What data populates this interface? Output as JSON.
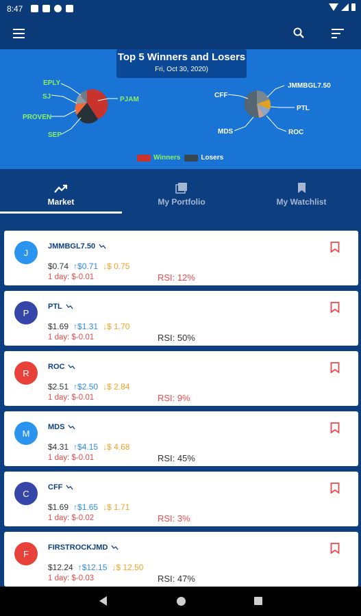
{
  "status_bar": {
    "time": "8:47"
  },
  "chart_data": {
    "type": "pie",
    "title": "Top 5 Winners and Losers",
    "subtitle": "Fri, Oct 30, 2020)",
    "legend": [
      "Winners",
      "Losers"
    ],
    "legend_placement": "bottom",
    "winners": [
      "EPLY",
      "SJ",
      "PROVEN",
      "SEP",
      "PJAM"
    ],
    "losers": [
      "CFF",
      "JMMBGL7.50",
      "PTL",
      "MDS",
      "ROC"
    ],
    "colors": {
      "winners": "#c8342b",
      "losers": "#37474f"
    }
  },
  "tabs": [
    {
      "label": "Market",
      "icon": "trending-icon",
      "active": true
    },
    {
      "label": "My Portfolio",
      "icon": "portfolio-icon",
      "active": false
    },
    {
      "label": "My Watchlist",
      "icon": "bookmark-icon",
      "active": false
    }
  ],
  "stocks": [
    {
      "initial": "J",
      "symbol": "JMMBGL7.50",
      "price": "$0.74",
      "high": "$0.71",
      "low": "$ 0.75",
      "day": "1 day: $-0.01",
      "rsi": "RSI: 12%",
      "rsi_color": "#e84b4b",
      "avatar_color": "#2a94ee"
    },
    {
      "initial": "P",
      "symbol": "PTL",
      "price": "$1.69",
      "high": "$1.31",
      "low": "$ 1.70",
      "day": "1 day: $-0.01",
      "rsi": "RSI: 50%",
      "rsi_color": "#333333",
      "avatar_color": "#3546a8"
    },
    {
      "initial": "R",
      "symbol": "ROC",
      "price": "$2.51",
      "high": "$2.50",
      "low": "$ 2.84",
      "day": "1 day: $-0.01",
      "rsi": "RSI: 9%",
      "rsi_color": "#e84b4b",
      "avatar_color": "#e8413a"
    },
    {
      "initial": "M",
      "symbol": "MDS",
      "price": "$4.31",
      "high": "$4.15",
      "low": "$ 4.68",
      "day": "1 day: $-0.01",
      "rsi": "RSI: 45%",
      "rsi_color": "#333333",
      "avatar_color": "#2a94ee"
    },
    {
      "initial": "C",
      "symbol": "CFF",
      "price": "$1.69",
      "high": "$1.65",
      "low": "$ 1.71",
      "day": "1 day: $-0.02",
      "rsi": "RSI: 3%",
      "rsi_color": "#e84b4b",
      "avatar_color": "#3546a8"
    },
    {
      "initial": "F",
      "symbol": "FIRSTROCKJMD",
      "price": "$12.24",
      "high": "$12.15",
      "low": "$ 12.50",
      "day": "1 day: $-0.03",
      "rsi": "RSI: 47%",
      "rsi_color": "#333333",
      "avatar_color": "#e8413a"
    }
  ]
}
